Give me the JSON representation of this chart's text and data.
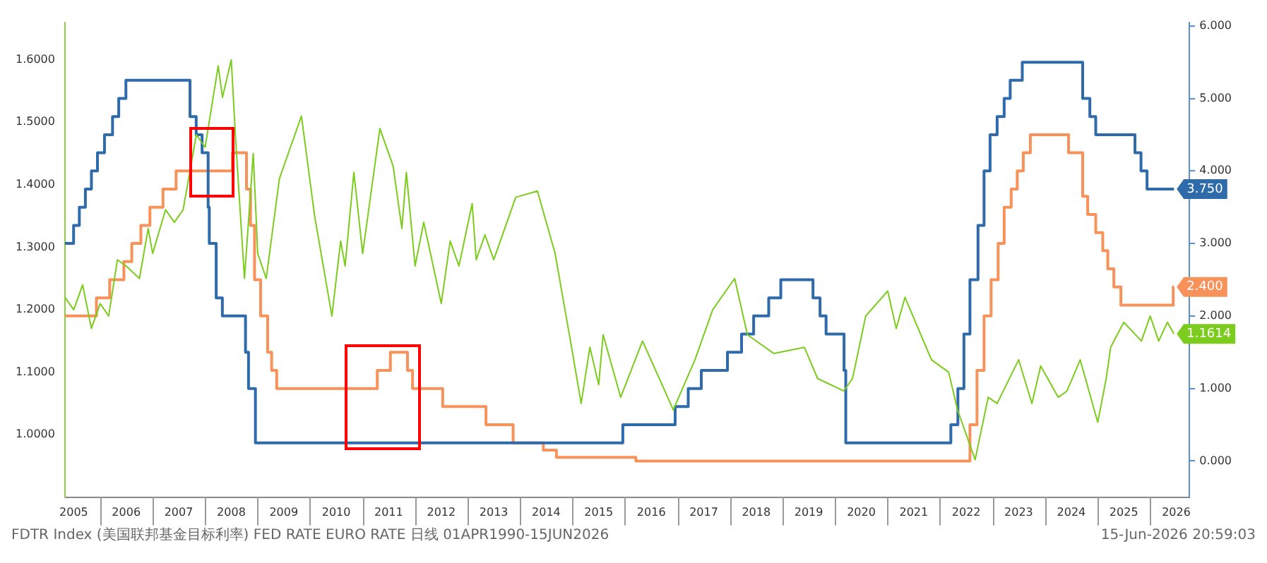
{
  "chart_data": {
    "type": "line",
    "annotations": [
      "FDTR Index (美国联邦基金目标利率) FED RATE EURO RATE 日线 01APR1990-15JUN2026",
      "15-Jun-2026 20:59:03"
    ],
    "xlim": [
      "2005-05",
      "2026-10"
    ],
    "xticks": [
      {
        "value": "2005-07",
        "label": "2005"
      },
      {
        "value": "2006-07",
        "label": "2006"
      },
      {
        "value": "2007-07",
        "label": "2007"
      },
      {
        "value": "2008-07",
        "label": "2008"
      },
      {
        "value": "2009-07",
        "label": "2009"
      },
      {
        "value": "2010-07",
        "label": "2010"
      },
      {
        "value": "2011-07",
        "label": "2011"
      },
      {
        "value": "2012-07",
        "label": "2012"
      },
      {
        "value": "2013-07",
        "label": "2013"
      },
      {
        "value": "2014-07",
        "label": "2014"
      },
      {
        "value": "2015-07",
        "label": "2015"
      },
      {
        "value": "2016-07",
        "label": "2016"
      },
      {
        "value": "2017-07",
        "label": "2017"
      },
      {
        "value": "2018-07",
        "label": "2018"
      },
      {
        "value": "2019-07",
        "label": "2019"
      },
      {
        "value": "2020-07",
        "label": "2020"
      },
      {
        "value": "2021-07",
        "label": "2021"
      },
      {
        "value": "2022-07",
        "label": "2022"
      },
      {
        "value": "2023-07",
        "label": "2023"
      },
      {
        "value": "2024-07",
        "label": "2024"
      },
      {
        "value": "2025-07",
        "label": "2025"
      },
      {
        "value": "2026-07",
        "label": "2026"
      }
    ],
    "ylim": [
      0.9,
      1.66
    ],
    "yticks": [
      {
        "value": 1,
        "label": "1.0000"
      },
      {
        "value": 1.1,
        "label": "1.1000"
      },
      {
        "value": 1.2,
        "label": "1.2000"
      },
      {
        "value": 1.3,
        "label": "1.3000"
      },
      {
        "value": 1.4,
        "label": "1.4000"
      },
      {
        "value": 1.5,
        "label": "1.5000"
      },
      {
        "value": 1.6,
        "label": "1.6000"
      }
    ],
    "y2lim": [
      -0.5,
      6.05
    ],
    "y2ticks": [
      {
        "value": 0,
        "label": "0.000"
      },
      {
        "value": 1,
        "label": "1.000"
      },
      {
        "value": 2,
        "label": "2.000"
      },
      {
        "value": 3,
        "label": "3.000"
      },
      {
        "value": 4,
        "label": "4.000"
      },
      {
        "value": 5,
        "label": "5.000"
      },
      {
        "value": 6,
        "label": "6.000"
      }
    ],
    "grid": false,
    "legend": false,
    "marker": "none",
    "series": [
      {
        "color": "#7ccc1e",
        "x": [
          "2005-05",
          "2005-07",
          "2005-09",
          "2005-11",
          "2006-01",
          "2006-03",
          "2006-05",
          "2006-07",
          "2006-10",
          "2006-12",
          "2007-01",
          "2007-04",
          "2007-06",
          "2007-08",
          "2007-11",
          "2008-01",
          "2008-04",
          "2008-05",
          "2008-07",
          "2008-08",
          "2008-10",
          "2008-12",
          "2009-01",
          "2009-03",
          "2009-06",
          "2009-11",
          "2010-02",
          "2010-06",
          "2010-08",
          "2010-09",
          "2010-11",
          "2011-01",
          "2011-05",
          "2011-08",
          "2011-10",
          "2011-11",
          "2012-01",
          "2012-03",
          "2012-07",
          "2012-09",
          "2012-11",
          "2013-02",
          "2013-03",
          "2013-05",
          "2013-07",
          "2013-12",
          "2014-05",
          "2014-09",
          "2015-01",
          "2015-03",
          "2015-05",
          "2015-07",
          "2015-08",
          "2015-12",
          "2016-05",
          "2016-12",
          "2017-05",
          "2017-09",
          "2018-02",
          "2018-05",
          "2018-11",
          "2019-06",
          "2019-09",
          "2020-03",
          "2020-05",
          "2020-08",
          "2021-01",
          "2021-03",
          "2021-05",
          "2021-11",
          "2022-03",
          "2022-05",
          "2022-09",
          "2022-12",
          "2023-02",
          "2023-07",
          "2023-10",
          "2023-12",
          "2024-04",
          "2024-06",
          "2024-09",
          "2025-01",
          "2025-03",
          "2025-04",
          "2025-07",
          "2025-11",
          "2026-01",
          "2026-03",
          "2026-05",
          "2026-06-15"
        ],
        "values": [
          1.22,
          1.2,
          1.24,
          1.17,
          1.21,
          1.19,
          1.28,
          1.27,
          1.25,
          1.33,
          1.29,
          1.36,
          1.34,
          1.36,
          1.48,
          1.46,
          1.59,
          1.54,
          1.6,
          1.47,
          1.25,
          1.45,
          1.29,
          1.25,
          1.41,
          1.51,
          1.35,
          1.19,
          1.31,
          1.27,
          1.42,
          1.29,
          1.49,
          1.43,
          1.33,
          1.42,
          1.27,
          1.34,
          1.21,
          1.31,
          1.27,
          1.37,
          1.28,
          1.32,
          1.28,
          1.38,
          1.39,
          1.29,
          1.13,
          1.05,
          1.14,
          1.08,
          1.16,
          1.06,
          1.15,
          1.04,
          1.12,
          1.2,
          1.25,
          1.16,
          1.13,
          1.14,
          1.09,
          1.07,
          1.09,
          1.19,
          1.23,
          1.17,
          1.22,
          1.12,
          1.1,
          1.04,
          0.96,
          1.06,
          1.05,
          1.12,
          1.05,
          1.11,
          1.06,
          1.07,
          1.12,
          1.02,
          1.09,
          1.14,
          1.18,
          1.15,
          1.19,
          1.15,
          1.18,
          1.1614
        ],
        "value_labels": [
          null,
          null,
          null,
          null,
          null,
          null,
          null,
          null,
          null,
          null,
          null,
          null,
          null,
          null,
          null,
          null,
          null,
          null,
          null,
          null,
          null,
          null,
          null,
          null,
          null,
          null,
          null,
          null,
          null,
          null,
          null,
          null,
          null,
          null,
          null,
          null,
          null,
          null,
          null,
          null,
          null,
          null,
          null,
          null,
          null,
          null,
          null,
          null,
          null,
          null,
          null,
          null,
          null,
          null,
          null,
          null,
          null,
          null,
          null,
          null,
          null,
          null,
          null,
          null,
          null,
          null,
          null,
          null,
          null,
          null,
          null,
          null,
          null,
          null,
          null,
          null,
          null,
          null,
          null,
          null,
          null,
          null,
          null,
          null,
          null,
          null,
          null,
          null,
          null,
          "1.1614"
        ]
      },
      {
        "type": "step",
        "axis": "y2",
        "color": "#2f6aab",
        "x": [
          "2005-05-01",
          "2005-06-30",
          "2005-08-09",
          "2005-09-20",
          "2005-11-01",
          "2005-12-13",
          "2006-01-31",
          "2006-03-28",
          "2006-05-10",
          "2006-06-29",
          "2007-09-18",
          "2007-10-31",
          "2007-12-11",
          "2008-01-22",
          "2008-01-30",
          "2008-03-18",
          "2008-04-30",
          "2008-10-08",
          "2008-10-29",
          "2008-12-16",
          "2015-12-16",
          "2016-12-14",
          "2017-03-15",
          "2017-06-14",
          "2017-12-13",
          "2018-03-21",
          "2018-06-13",
          "2018-09-26",
          "2018-12-19",
          "2019-07-31",
          "2019-09-18",
          "2019-10-30",
          "2020-03-03",
          "2020-03-15",
          "2022-03-16",
          "2022-05-04",
          "2022-06-15",
          "2022-07-27",
          "2022-09-21",
          "2022-11-02",
          "2022-12-14",
          "2023-02-01",
          "2023-03-22",
          "2023-05-03",
          "2023-07-26",
          "2024-09-18",
          "2024-11-07",
          "2024-12-18",
          "2025-09-17",
          "2025-10-29",
          "2025-12-10",
          "2026-06-15"
        ],
        "values": [
          3.0,
          3.25,
          3.5,
          3.75,
          4.0,
          4.25,
          4.5,
          4.75,
          5.0,
          5.25,
          4.75,
          4.5,
          4.25,
          3.5,
          3.0,
          2.25,
          2.0,
          1.5,
          1.0,
          0.25,
          0.5,
          0.75,
          1.0,
          1.25,
          1.5,
          1.75,
          2.0,
          2.25,
          2.5,
          2.25,
          2.0,
          1.75,
          1.25,
          0.25,
          0.5,
          1.0,
          1.75,
          2.5,
          3.25,
          4.0,
          4.5,
          4.75,
          5.0,
          5.25,
          5.5,
          5.0,
          4.75,
          4.5,
          4.25,
          4.0,
          3.75,
          3.75
        ],
        "value_labels": [
          null,
          null,
          null,
          null,
          null,
          null,
          null,
          null,
          null,
          null,
          null,
          null,
          null,
          null,
          null,
          null,
          null,
          null,
          null,
          null,
          null,
          null,
          null,
          null,
          null,
          null,
          null,
          null,
          null,
          null,
          null,
          null,
          null,
          null,
          null,
          null,
          null,
          null,
          null,
          null,
          null,
          null,
          null,
          null,
          null,
          null,
          null,
          null,
          null,
          null,
          null,
          "3.750"
        ]
      },
      {
        "type": "step",
        "axis": "y2",
        "color": "#f7925a",
        "x": [
          "2005-05-01",
          "2005-12-06",
          "2006-03-08",
          "2006-06-15",
          "2006-08-09",
          "2006-10-11",
          "2006-12-13",
          "2007-03-14",
          "2007-06-13",
          "2008-07-09",
          "2008-10-15",
          "2008-11-12",
          "2008-12-10",
          "2009-01-21",
          "2009-03-11",
          "2009-04-08",
          "2009-05-13",
          "2011-04-13",
          "2011-07-13",
          "2011-11-09",
          "2011-12-14",
          "2012-07-11",
          "2013-05-08",
          "2013-11-13",
          "2014-06-11",
          "2014-09-10",
          "2016-03-16",
          "2022-07-27",
          "2022-09-14",
          "2022-11-02",
          "2022-12-21",
          "2023-02-08",
          "2023-03-22",
          "2023-05-10",
          "2023-06-21",
          "2023-08-02",
          "2023-09-20",
          "2024-06-12",
          "2024-09-18",
          "2024-10-23",
          "2024-12-18",
          "2025-02-05",
          "2025-03-12",
          "2025-04-23",
          "2025-06-11",
          "2026-06-10",
          "2026-06-15"
        ],
        "values": [
          2.0,
          2.25,
          2.5,
          2.75,
          3.0,
          3.25,
          3.5,
          3.75,
          4.0,
          4.25,
          3.75,
          3.25,
          2.5,
          2.0,
          1.5,
          1.25,
          1.0,
          1.25,
          1.5,
          1.25,
          1.0,
          0.75,
          0.5,
          0.25,
          0.15,
          0.05,
          0.0,
          0.5,
          1.25,
          2.0,
          2.5,
          3.0,
          3.5,
          3.75,
          4.0,
          4.25,
          4.5,
          4.25,
          3.65,
          3.4,
          3.15,
          2.9,
          2.65,
          2.4,
          2.15,
          2.4,
          2.4
        ],
        "value_labels": [
          null,
          null,
          null,
          null,
          null,
          null,
          null,
          null,
          null,
          null,
          null,
          null,
          null,
          null,
          null,
          null,
          null,
          null,
          null,
          null,
          null,
          null,
          null,
          null,
          null,
          null,
          null,
          null,
          null,
          null,
          null,
          null,
          null,
          null,
          null,
          null,
          null,
          null,
          null,
          null,
          null,
          null,
          null,
          null,
          null,
          null,
          "2.400"
        ]
      }
    ]
  }
}
